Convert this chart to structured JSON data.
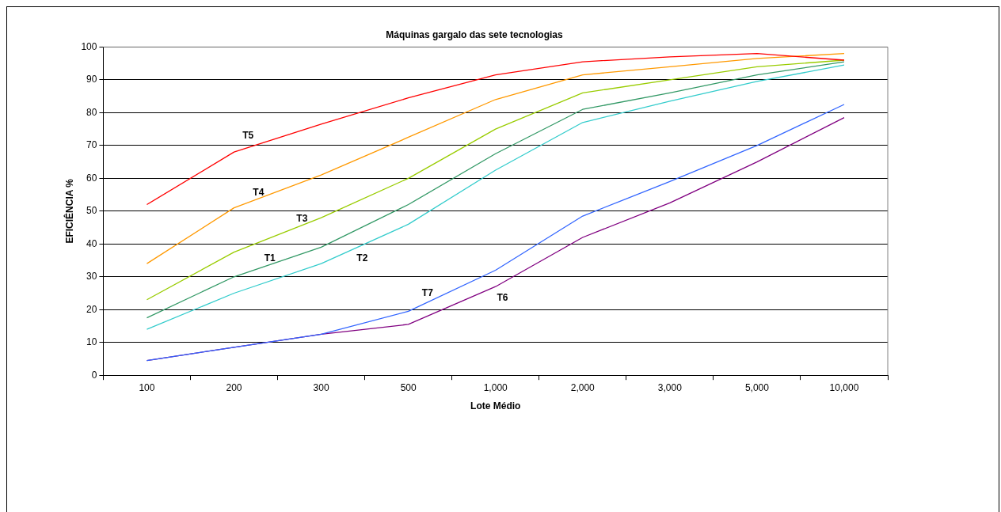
{
  "chart_data": {
    "type": "line",
    "title": "Máquinas gargalo das sete tecnologias",
    "xlabel": "Lote Médio",
    "ylabel": "EFICIÊNCIA %",
    "categories": [
      "100",
      "200",
      "300",
      "500",
      "1,000",
      "2,000",
      "3,000",
      "5,000",
      "10,000"
    ],
    "ylim": [
      0,
      100
    ],
    "yticks": [
      0,
      10,
      20,
      30,
      40,
      50,
      60,
      70,
      80,
      90,
      100
    ],
    "grid": "y",
    "legend": false,
    "marker": "none",
    "line_style": "solid",
    "series": [
      {
        "name": "T5",
        "color": "#ff0000",
        "values": [
          52,
          68,
          76.5,
          84.5,
          91.5,
          95.5,
          97,
          98,
          96
        ]
      },
      {
        "name": "T4",
        "color": "#ff9900",
        "values": [
          34,
          51,
          61,
          72.5,
          84,
          91.5,
          94,
          96.5,
          98
        ]
      },
      {
        "name": "T3",
        "color": "#99cc00",
        "values": [
          23,
          37.5,
          48,
          60,
          75,
          86,
          90,
          94,
          96
        ]
      },
      {
        "name": "T1",
        "color": "#339966",
        "values": [
          17.5,
          30,
          39,
          52,
          67.5,
          81,
          86,
          91.5,
          95.5
        ]
      },
      {
        "name": "T2",
        "color": "#33cccc",
        "values": [
          14,
          25,
          34,
          46,
          62.5,
          77,
          83.5,
          89.5,
          94.5
        ]
      },
      {
        "name": "T7",
        "color": "#3366ff",
        "values": [
          4.5,
          8.5,
          12.5,
          19.5,
          32,
          48.5,
          59,
          70,
          82.5
        ]
      },
      {
        "name": "T6",
        "color": "#800080",
        "values": [
          4.5,
          8.5,
          12.5,
          15.5,
          27,
          42,
          52.5,
          65,
          78.5
        ]
      }
    ]
  }
}
